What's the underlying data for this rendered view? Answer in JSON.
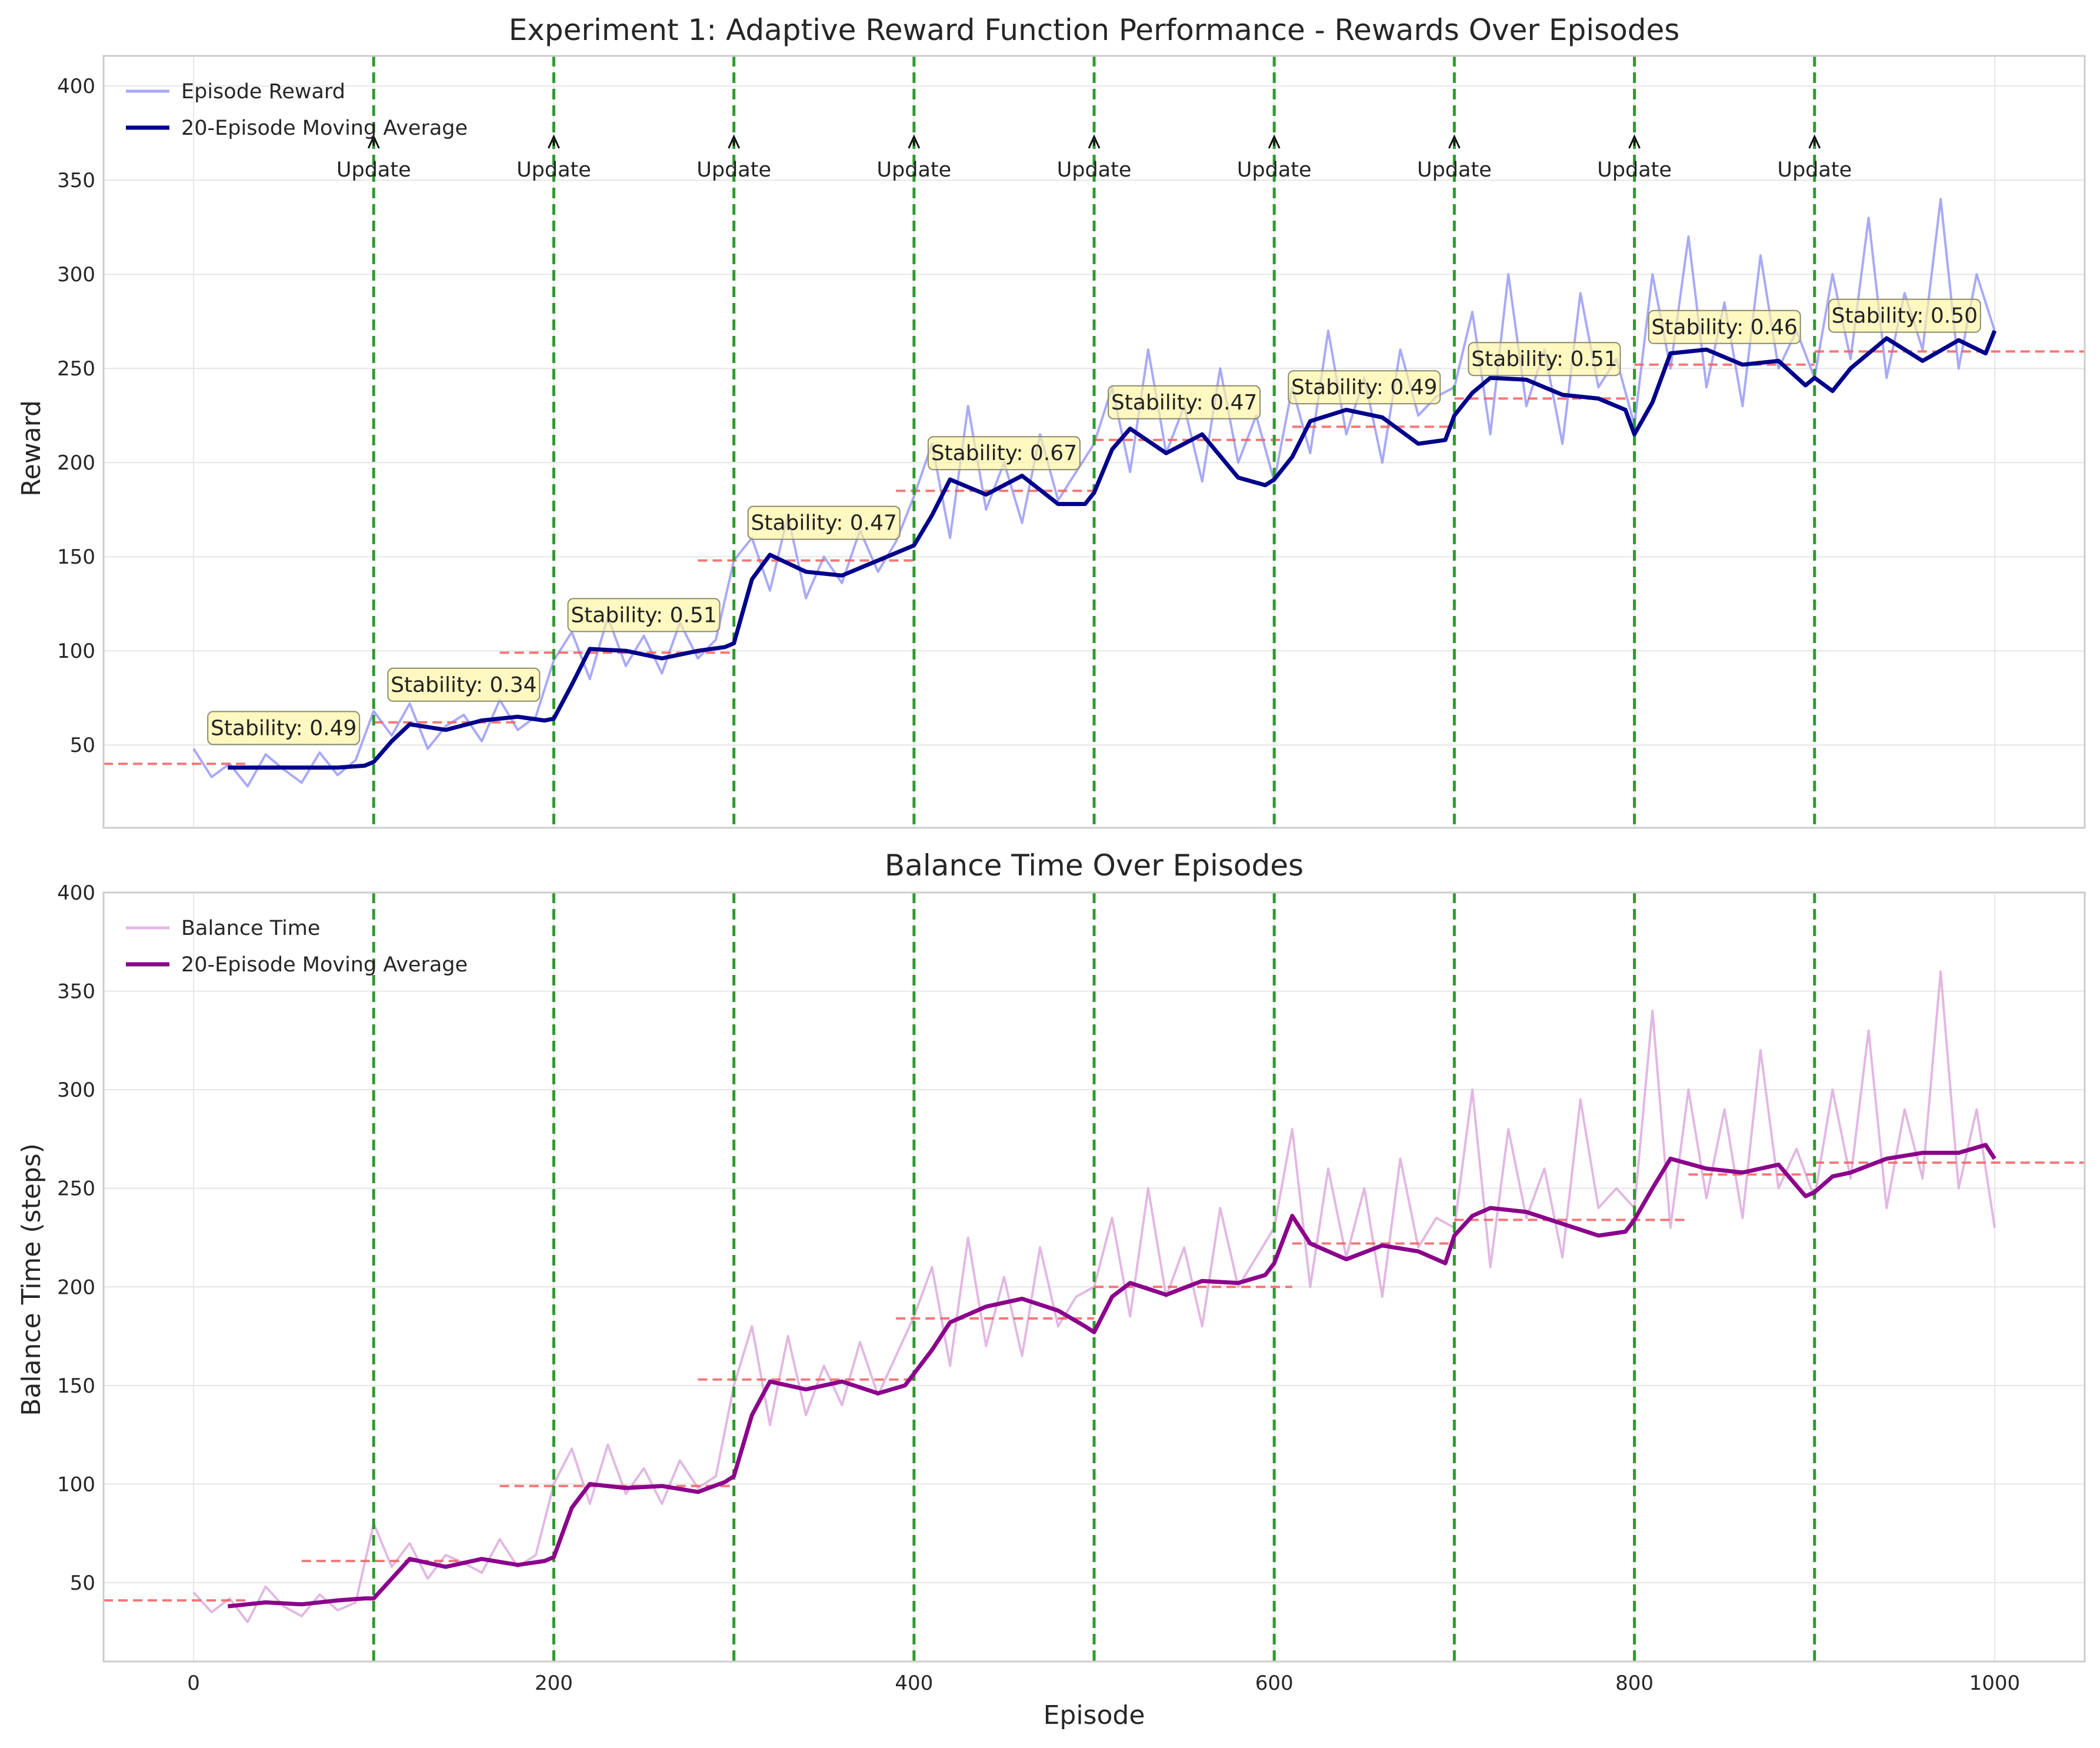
{
  "chart_data": [
    {
      "type": "line",
      "title": "Experiment 1: Adaptive Reward Function Performance - Rewards Over Episodes",
      "xlabel": "",
      "ylabel": "Reward",
      "xlim": [
        -50,
        1050
      ],
      "ylim": [
        6,
        416
      ],
      "xticks": [
        0,
        200,
        400,
        600,
        800,
        1000
      ],
      "yticks": [
        50,
        100,
        150,
        200,
        250,
        300,
        350,
        400
      ],
      "grid": true,
      "legend_position": "top-left",
      "colors": {
        "raw": "#8c8cf5",
        "avg": "#00008b",
        "update_line": "#2e9b2e",
        "threshold": "#f06060",
        "annotation_box": "#fff5a0"
      },
      "series": [
        {
          "name": "Episode Reward",
          "style": "raw",
          "x": [
            0,
            10,
            20,
            30,
            40,
            50,
            60,
            70,
            80,
            90,
            100,
            110,
            120,
            130,
            140,
            150,
            160,
            170,
            180,
            190,
            200,
            210,
            220,
            230,
            240,
            250,
            260,
            270,
            280,
            290,
            300,
            310,
            320,
            330,
            340,
            350,
            360,
            370,
            380,
            390,
            400,
            410,
            420,
            430,
            440,
            450,
            460,
            470,
            480,
            490,
            500,
            510,
            520,
            530,
            540,
            550,
            560,
            570,
            580,
            590,
            600,
            610,
            620,
            630,
            640,
            650,
            660,
            670,
            680,
            690,
            700,
            710,
            720,
            730,
            740,
            750,
            760,
            770,
            780,
            790,
            800,
            810,
            820,
            830,
            840,
            850,
            860,
            870,
            880,
            890,
            900,
            910,
            920,
            930,
            940,
            950,
            960,
            970,
            980,
            990,
            1000
          ],
          "values": [
            48,
            33,
            40,
            28,
            45,
            37,
            30,
            46,
            34,
            42,
            68,
            55,
            72,
            48,
            60,
            66,
            52,
            74,
            58,
            65,
            95,
            110,
            85,
            118,
            92,
            108,
            88,
            115,
            96,
            106,
            148,
            160,
            132,
            172,
            128,
            150,
            136,
            164,
            142,
            158,
            182,
            210,
            160,
            230,
            175,
            200,
            168,
            215,
            180,
            195,
            210,
            240,
            195,
            260,
            205,
            230,
            190,
            250,
            200,
            225,
            190,
            240,
            205,
            270,
            215,
            245,
            200,
            260,
            225,
            235,
            240,
            280,
            215,
            300,
            230,
            260,
            210,
            290,
            240,
            255,
            220,
            300,
            250,
            320,
            240,
            285,
            230,
            310,
            250,
            270,
            245,
            300,
            255,
            330,
            245,
            290,
            260,
            340,
            250,
            300,
            270
          ]
        },
        {
          "name": "20-Episode Moving Average",
          "style": "avg",
          "x": [
            19,
            40,
            60,
            80,
            95,
            100,
            110,
            120,
            140,
            160,
            180,
            195,
            200,
            210,
            220,
            240,
            260,
            280,
            295,
            300,
            310,
            320,
            340,
            360,
            380,
            395,
            400,
            410,
            420,
            440,
            460,
            480,
            495,
            500,
            510,
            520,
            540,
            560,
            580,
            595,
            600,
            610,
            620,
            640,
            660,
            680,
            695,
            700,
            710,
            720,
            740,
            760,
            780,
            795,
            800,
            810,
            820,
            840,
            860,
            880,
            895,
            900,
            910,
            920,
            940,
            960,
            980,
            995,
            1000
          ],
          "values": [
            38,
            38,
            38,
            38,
            39,
            41,
            52,
            61,
            58,
            63,
            65,
            63,
            64,
            82,
            101,
            100,
            96,
            100,
            102,
            104,
            138,
            151,
            142,
            140,
            148,
            154,
            156,
            172,
            191,
            183,
            193,
            178,
            178,
            184,
            207,
            218,
            205,
            215,
            192,
            188,
            191,
            203,
            222,
            228,
            224,
            210,
            212,
            225,
            237,
            245,
            244,
            236,
            234,
            228,
            215,
            232,
            258,
            260,
            252,
            254,
            241,
            245,
            238,
            250,
            266,
            254,
            265,
            258,
            270
          ]
        }
      ],
      "thresholds": [
        {
          "x": [
            -50,
            30
          ],
          "y": 40
        },
        {
          "x": [
            100,
            180
          ],
          "y": 62
        },
        {
          "x": [
            170,
            300
          ],
          "y": 99
        },
        {
          "x": [
            280,
            400
          ],
          "y": 148
        },
        {
          "x": [
            390,
            500
          ],
          "y": 185
        },
        {
          "x": [
            500,
            610
          ],
          "y": 212
        },
        {
          "x": [
            610,
            700
          ],
          "y": 219
        },
        {
          "x": [
            700,
            800
          ],
          "y": 234
        },
        {
          "x": [
            800,
            900
          ],
          "y": 252
        },
        {
          "x": [
            900,
            1050
          ],
          "y": 259
        }
      ],
      "update_lines": [
        100,
        200,
        300,
        400,
        500,
        600,
        700,
        800,
        900
      ],
      "update_label": "Update",
      "annotations": [
        {
          "text": "Stability: 0.49",
          "x": 50,
          "y": 59
        },
        {
          "text": "Stability: 0.34",
          "x": 150,
          "y": 82
        },
        {
          "text": "Stability: 0.51",
          "x": 250,
          "y": 119
        },
        {
          "text": "Stability: 0.47",
          "x": 350,
          "y": 168
        },
        {
          "text": "Stability: 0.67",
          "x": 450,
          "y": 205
        },
        {
          "text": "Stability: 0.47",
          "x": 550,
          "y": 232
        },
        {
          "text": "Stability: 0.49",
          "x": 650,
          "y": 240
        },
        {
          "text": "Stability: 0.51",
          "x": 750,
          "y": 255
        },
        {
          "text": "Stability: 0.46",
          "x": 850,
          "y": 272
        },
        {
          "text": "Stability: 0.50",
          "x": 950,
          "y": 278
        }
      ]
    },
    {
      "type": "line",
      "title": "Balance Time Over Episodes",
      "xlabel": "Episode",
      "ylabel": "Balance Time (steps)",
      "xlim": [
        -50,
        1050
      ],
      "ylim": [
        10,
        400
      ],
      "xticks": [
        0,
        200,
        400,
        600,
        800,
        1000
      ],
      "yticks": [
        50,
        100,
        150,
        200,
        250,
        300,
        350,
        400
      ],
      "grid": true,
      "legend_position": "top-left",
      "colors": {
        "raw": "#d8a0d8",
        "avg": "#8b008b",
        "update_line": "#2e9b2e",
        "threshold": "#f06060"
      },
      "series": [
        {
          "name": "Balance Time",
          "style": "raw",
          "x": [
            0,
            10,
            20,
            30,
            40,
            50,
            60,
            70,
            80,
            90,
            100,
            110,
            120,
            130,
            140,
            150,
            160,
            170,
            180,
            190,
            200,
            210,
            220,
            230,
            240,
            250,
            260,
            270,
            280,
            290,
            300,
            310,
            320,
            330,
            340,
            350,
            360,
            370,
            380,
            390,
            400,
            410,
            420,
            430,
            440,
            450,
            460,
            470,
            480,
            490,
            500,
            510,
            520,
            530,
            540,
            550,
            560,
            570,
            580,
            590,
            600,
            610,
            620,
            630,
            640,
            650,
            660,
            670,
            680,
            690,
            700,
            710,
            720,
            730,
            740,
            750,
            760,
            770,
            780,
            790,
            800,
            810,
            820,
            830,
            840,
            850,
            860,
            870,
            880,
            890,
            900,
            910,
            920,
            930,
            940,
            950,
            960,
            970,
            980,
            990,
            1000
          ],
          "values": [
            45,
            35,
            42,
            30,
            48,
            38,
            33,
            44,
            36,
            40,
            80,
            58,
            70,
            52,
            64,
            60,
            55,
            72,
            58,
            64,
            100,
            118,
            90,
            120,
            95,
            108,
            90,
            112,
            98,
            104,
            150,
            180,
            130,
            175,
            135,
            160,
            140,
            172,
            145,
            165,
            185,
            210,
            160,
            225,
            170,
            205,
            165,
            220,
            180,
            195,
            200,
            235,
            185,
            250,
            195,
            220,
            180,
            240,
            200,
            215,
            230,
            280,
            200,
            260,
            215,
            250,
            195,
            265,
            220,
            235,
            230,
            300,
            210,
            280,
            235,
            260,
            215,
            295,
            240,
            250,
            240,
            340,
            230,
            300,
            245,
            290,
            235,
            320,
            250,
            270,
            245,
            300,
            255,
            330,
            240,
            290,
            255,
            360,
            250,
            290,
            230
          ]
        },
        {
          "name": "20-Episode Moving Average",
          "style": "avg",
          "x": [
            19,
            40,
            60,
            80,
            95,
            100,
            110,
            120,
            140,
            160,
            180,
            195,
            200,
            210,
            220,
            240,
            260,
            280,
            295,
            300,
            310,
            320,
            340,
            360,
            380,
            395,
            400,
            410,
            420,
            440,
            460,
            480,
            495,
            500,
            510,
            520,
            540,
            560,
            580,
            595,
            600,
            610,
            620,
            640,
            660,
            680,
            695,
            700,
            710,
            720,
            740,
            760,
            780,
            795,
            800,
            810,
            820,
            840,
            860,
            880,
            895,
            900,
            910,
            920,
            940,
            960,
            980,
            995,
            1000
          ],
          "values": [
            38,
            40,
            39,
            41,
            42,
            42,
            52,
            62,
            58,
            62,
            59,
            61,
            63,
            88,
            100,
            98,
            99,
            96,
            101,
            104,
            135,
            152,
            148,
            152,
            146,
            150,
            156,
            168,
            182,
            190,
            194,
            188,
            180,
            177,
            195,
            202,
            196,
            203,
            202,
            206,
            212,
            236,
            222,
            214,
            221,
            218,
            212,
            226,
            236,
            240,
            238,
            232,
            226,
            228,
            234,
            250,
            265,
            260,
            258,
            262,
            246,
            248,
            256,
            258,
            265,
            268,
            268,
            272,
            265
          ]
        }
      ],
      "thresholds": [
        {
          "x": [
            -50,
            30
          ],
          "y": 41
        },
        {
          "x": [
            60,
            150
          ],
          "y": 61
        },
        {
          "x": [
            170,
            300
          ],
          "y": 99
        },
        {
          "x": [
            280,
            400
          ],
          "y": 153
        },
        {
          "x": [
            390,
            500
          ],
          "y": 184
        },
        {
          "x": [
            500,
            610
          ],
          "y": 200
        },
        {
          "x": [
            610,
            700
          ],
          "y": 222
        },
        {
          "x": [
            700,
            830
          ],
          "y": 234
        },
        {
          "x": [
            830,
            900
          ],
          "y": 257
        },
        {
          "x": [
            900,
            1050
          ],
          "y": 263
        }
      ],
      "update_lines": [
        100,
        200,
        300,
        400,
        500,
        600,
        700,
        800,
        900
      ]
    }
  ]
}
